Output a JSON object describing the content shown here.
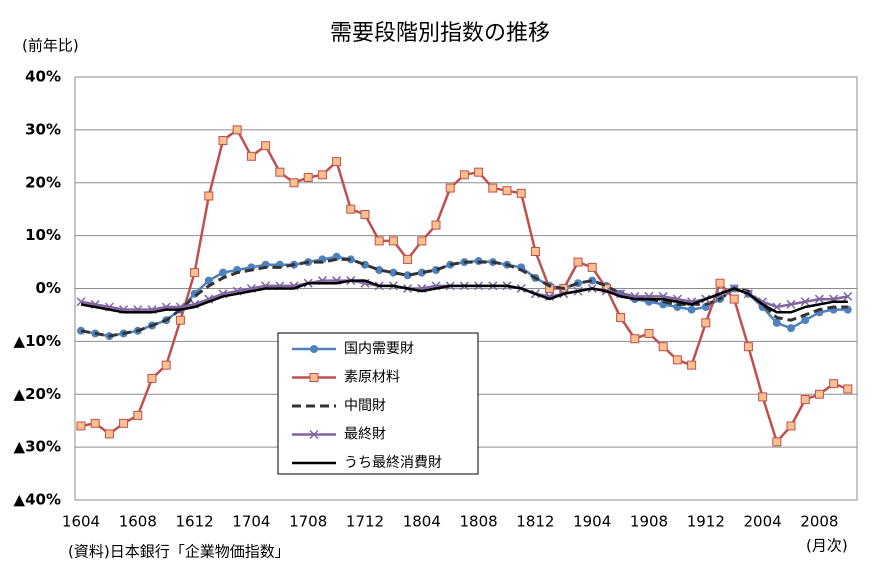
{
  "chart_data": {
    "type": "line",
    "title": "需要段階別指数の推移",
    "y_label": "(前年比)",
    "x_label": "(月次)",
    "note": "(資料)日本銀行「企業物価指数」",
    "categories": [
      "1604",
      null,
      null,
      null,
      "1608",
      null,
      null,
      null,
      "1612",
      null,
      null,
      null,
      "1704",
      null,
      null,
      null,
      "1708",
      null,
      null,
      null,
      "1712",
      null,
      null,
      null,
      "1804",
      null,
      null,
      null,
      "1808",
      null,
      null,
      null,
      "1812",
      null,
      null,
      null,
      "1904",
      null,
      null,
      null,
      "1908",
      null,
      null,
      null,
      "1912",
      null,
      null,
      null,
      "2004",
      null,
      null,
      null,
      "2008",
      null,
      null
    ],
    "ylim": [
      -40,
      40
    ],
    "yticks": [
      {
        "value": 40,
        "label": "40%"
      },
      {
        "value": 30,
        "label": "30%"
      },
      {
        "value": 20,
        "label": "20%"
      },
      {
        "value": 10,
        "label": "10%"
      },
      {
        "value": 0,
        "label": "0%"
      },
      {
        "value": -10,
        "label": "▲10%"
      },
      {
        "value": -20,
        "label": "▲20%"
      },
      {
        "value": -30,
        "label": "▲30%"
      },
      {
        "value": -40,
        "label": "▲40%"
      }
    ],
    "grid": true,
    "negative_label_color": "#ff0000",
    "series": [
      {
        "name": "国内需要財",
        "color": "#4f81bd",
        "marker": "circle",
        "dash": false,
        "values": [
          -8,
          -8.5,
          -9,
          -8.5,
          -8,
          -7,
          -6,
          -4,
          -1,
          1.5,
          3,
          3.5,
          4,
          4.5,
          4.5,
          4.5,
          5,
          5.5,
          6,
          5.5,
          4.5,
          3.5,
          3,
          2.5,
          3,
          3.5,
          4.5,
          5,
          5.2,
          5,
          4.5,
          4,
          2,
          0.5,
          0,
          1,
          1.5,
          0.5,
          -1,
          -2,
          -2.5,
          -3,
          -3.5,
          -4,
          -3.5,
          -2,
          0,
          -1,
          -3.5,
          -6.5,
          -7.5,
          -6,
          -4.5,
          -4,
          -4
        ]
      },
      {
        "name": "素原材料",
        "color": "#c0504d",
        "marker": "square",
        "marker_color": "#fac090",
        "dash": false,
        "values": [
          -26,
          -25.5,
          -27.5,
          -25.5,
          -24,
          -17,
          -14.5,
          -6,
          3,
          17.5,
          28,
          30,
          25,
          27,
          22,
          20,
          21,
          21.5,
          24,
          15,
          14,
          9,
          9,
          5.5,
          9,
          12,
          19,
          21.5,
          22,
          19,
          18.5,
          18,
          7,
          0,
          0,
          5,
          4,
          0,
          -5.5,
          -9.5,
          -8.5,
          -11,
          -13.5,
          -14.5,
          -6.5,
          1,
          -2,
          -11,
          -20.5,
          -29,
          -26,
          -21,
          -20,
          -18,
          -19
        ]
      },
      {
        "name": "中間財",
        "color": "#333333",
        "marker": "none",
        "dash": true,
        "values": [
          -8,
          -8.5,
          -9,
          -8.5,
          -8,
          -7,
          -6,
          -4,
          -1.5,
          0.5,
          2,
          3,
          3.5,
          4,
          4,
          4.5,
          5,
          5,
          5.5,
          5.5,
          4.5,
          3.5,
          3,
          2.5,
          3,
          3.5,
          4.5,
          5,
          5,
          5,
          4.5,
          3.5,
          2,
          0.5,
          0,
          1,
          1.5,
          0.5,
          -1,
          -1.5,
          -2,
          -2.5,
          -3,
          -3,
          -3,
          -2,
          0,
          -0.5,
          -3,
          -5.5,
          -6,
          -5,
          -4,
          -3.5,
          -3.5
        ]
      },
      {
        "name": "最終財",
        "color": "#8064a2",
        "marker": "x",
        "dash": false,
        "values": [
          -2.5,
          -3,
          -3.5,
          -4,
          -4,
          -4,
          -3.5,
          -3.5,
          -3,
          -2,
          -1,
          -0.5,
          0,
          0.5,
          0.5,
          0.5,
          1,
          1.5,
          1.5,
          1.5,
          1,
          0.5,
          0.5,
          0,
          0,
          0.5,
          0.5,
          0.5,
          0.5,
          0.5,
          0.5,
          0,
          -1,
          -1.5,
          -1,
          -0.5,
          0,
          -0.5,
          -1,
          -1.5,
          -1.5,
          -1.5,
          -2,
          -2.5,
          -2,
          -1,
          0,
          -1,
          -2.5,
          -3.5,
          -3,
          -2.5,
          -2,
          -2,
          -1.5
        ]
      },
      {
        "name": "うち最終消費財",
        "color": "#000000",
        "marker": "none",
        "dash": false,
        "values": [
          -3,
          -3.5,
          -4,
          -4.5,
          -4.5,
          -4.5,
          -4,
          -4,
          -3.5,
          -2.5,
          -1.5,
          -1,
          -0.5,
          0,
          0,
          0,
          1,
          1,
          1,
          1.5,
          1.5,
          0.5,
          0.5,
          0,
          -0.5,
          0,
          0.5,
          0.5,
          0.5,
          0.5,
          0.5,
          0,
          -1,
          -2,
          -1,
          -0.5,
          0,
          -0.5,
          -1.5,
          -2,
          -2,
          -2,
          -2.5,
          -3,
          -2,
          -1,
          0,
          -1,
          -3,
          -4.5,
          -4.5,
          -3.5,
          -3,
          -2.5,
          -2.5
        ]
      }
    ]
  }
}
